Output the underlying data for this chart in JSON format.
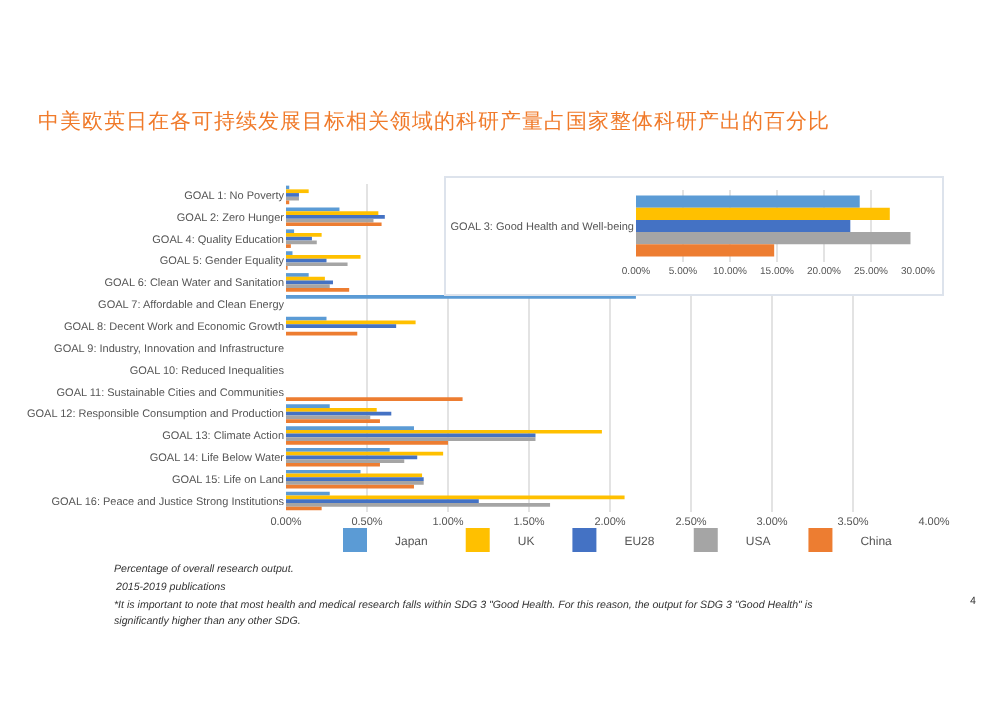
{
  "chart_data": [
    {
      "type": "bar",
      "orientation": "horizontal",
      "title": "中美欧英日在各可持续发展目标相关领域的科研产量占国家整体科研产出的百分比",
      "categories": [
        "GOAL 1: No Poverty",
        "GOAL 2: Zero Hunger",
        "GOAL 4: Quality Education",
        "GOAL 5: Gender Equality",
        "GOAL 6: Clean Water and Sanitation",
        "GOAL 7: Affordable and Clean Energy",
        "GOAL 8: Decent Work and Economic Growth",
        "GOAL 9: Industry, Innovation and Infrastructure",
        "GOAL 10: Reduced Inequalities",
        "GOAL 11: Sustainable Cities and Communities",
        "GOAL 12: Responsible Consumption and Production",
        "GOAL 13: Climate Action",
        "GOAL 14: Life Below Water",
        "GOAL 15: Life on Land",
        "GOAL 16: Peace and Justice Strong Institutions"
      ],
      "series": [
        {
          "name": "Japan",
          "color": "#5b9bd5",
          "values": [
            0.02,
            0.33,
            0.05,
            0.04,
            0.14,
            2.16,
            0.25,
            null,
            null,
            null,
            0.27,
            0.79,
            0.64,
            0.46,
            0.27
          ]
        },
        {
          "name": "UK",
          "color": "#ffc000",
          "values": [
            0.14,
            0.57,
            0.22,
            0.46,
            0.24,
            null,
            0.8,
            null,
            null,
            null,
            0.56,
            1.95,
            0.97,
            0.84,
            2.09
          ]
        },
        {
          "name": "EU28",
          "color": "#4472c4",
          "values": [
            0.08,
            0.61,
            0.16,
            0.25,
            0.29,
            null,
            0.68,
            null,
            null,
            null,
            0.65,
            1.54,
            0.81,
            0.85,
            1.19
          ]
        },
        {
          "name": "USA",
          "color": "#a5a5a5",
          "values": [
            0.08,
            0.54,
            0.19,
            0.38,
            0.27,
            null,
            null,
            null,
            null,
            null,
            0.52,
            1.54,
            0.73,
            0.85,
            1.63
          ]
        },
        {
          "name": "China",
          "color": "#ed7d31",
          "values": [
            0.02,
            0.59,
            0.03,
            0.01,
            0.39,
            null,
            0.44,
            null,
            null,
            1.09,
            0.58,
            1.0,
            0.58,
            0.79,
            0.22
          ]
        }
      ],
      "xlim": [
        0,
        4
      ],
      "xticks": [
        {
          "value": 0,
          "label": "0.00%"
        },
        {
          "value": 0.5,
          "label": "0.50%"
        },
        {
          "value": 1,
          "label": "1.00%"
        },
        {
          "value": 1.5,
          "label": "1.50%"
        },
        {
          "value": 2,
          "label": "2.00%"
        },
        {
          "value": 2.5,
          "label": "2.50%"
        },
        {
          "value": 3,
          "label": "3.00%"
        },
        {
          "value": 3.5,
          "label": "3.50%"
        },
        {
          "value": 4,
          "label": "4.00%"
        }
      ],
      "grid": "x",
      "legend": "bottom",
      "annotations": [
        "Percentage of overall research output.",
        "2015-2019 publications",
        "*It is important to note that most health and medical research falls within SDG 3 \"Good Health. For this reason, the output for SDG 3 \"Good Health\" is",
        "significantly higher than any other SDG.",
        "4"
      ]
    },
    {
      "type": "bar",
      "orientation": "horizontal",
      "categories": [
        "GOAL 3: Good Health and Well-being"
      ],
      "series": [
        {
          "color": "#5b9bd5",
          "values": [
            23.8
          ]
        },
        {
          "color": "#ffc000",
          "values": [
            27.0
          ]
        },
        {
          "color": "#4472c4",
          "values": [
            22.8
          ]
        },
        {
          "color": "#a5a5a5",
          "values": [
            29.2
          ]
        },
        {
          "color": "#ed7d31",
          "values": [
            14.7
          ]
        }
      ],
      "xlim": [
        0,
        30
      ],
      "xticks": [
        {
          "value": 0,
          "label": "0.00%"
        },
        {
          "value": 5,
          "label": "5.00%"
        },
        {
          "value": 10,
          "label": "10.00%"
        },
        {
          "value": 15,
          "label": "15.00%"
        },
        {
          "value": 20,
          "label": "20.00%"
        },
        {
          "value": 25,
          "label": "25.00%"
        },
        {
          "value": 30,
          "label": "30.00%"
        }
      ],
      "grid": "x"
    }
  ]
}
